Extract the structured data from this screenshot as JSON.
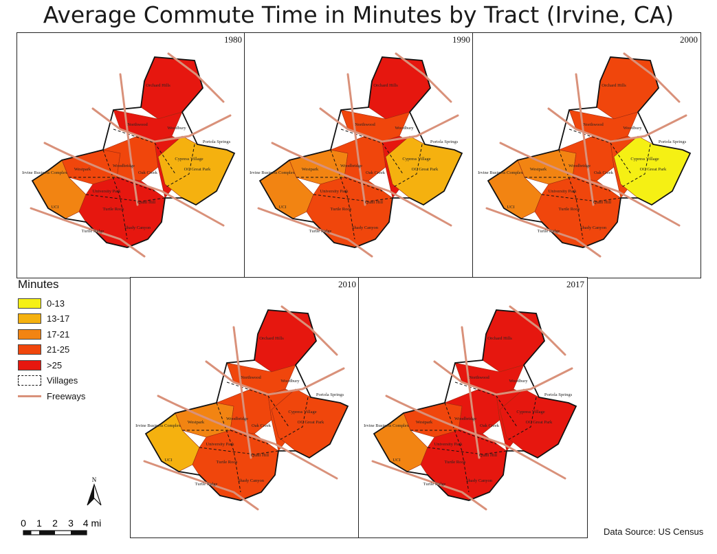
{
  "title": "Average Commute Time in Minutes by Tract (Irvine, CA)",
  "panels": [
    {
      "year": "1980",
      "fills": [
        "#e6170f",
        "#e6170f",
        "#f0460c",
        "#f0460c",
        "#e6170f",
        "#f5b10f",
        "#f28412",
        "#e6170f"
      ]
    },
    {
      "year": "1990",
      "fills": [
        "#e6170f",
        "#f0460c",
        "#f28412",
        "#f0460c",
        "#e6170f",
        "#f5b10f",
        "#f28412",
        "#f0460c"
      ]
    },
    {
      "year": "2000",
      "fills": [
        "#f0460c",
        "#f0460c",
        "#f28412",
        "#f0460c",
        "#f0460c",
        "#f5f014",
        "#f28412",
        "#f0460c"
      ]
    },
    {
      "year": "2010",
      "fills": [
        "#e6170f",
        "#f0460c",
        "#f28412",
        "#f0460c",
        "#f0460c",
        "#f0460c",
        "#f5b10f",
        "#f0460c"
      ]
    },
    {
      "year": "2017",
      "fills": [
        "#e6170f",
        "#e6170f",
        "#f0460c",
        "#e6170f",
        "#e6170f",
        "#e6170f",
        "#f28412",
        "#e6170f"
      ]
    }
  ],
  "place_labels": [
    "Orchard Hills",
    "Northwood",
    "Woodbury",
    "Westpark",
    "Woodbridge",
    "Oak Creek",
    "OC Great Park",
    "University Park",
    "Turtle Rock",
    "Quail Hill",
    "Shady Canyon",
    "Turtle Ridge",
    "Portola Springs",
    "Cypress Village",
    "UCI",
    "Irvine Business Complex"
  ],
  "legend": {
    "title": "Minutes",
    "items": [
      {
        "label": "0-13",
        "color": "#f5f014"
      },
      {
        "label": "13-17",
        "color": "#f5b10f"
      },
      {
        "label": "17-21",
        "color": "#f28412"
      },
      {
        "label": "21-25",
        "color": "#f0460c"
      },
      {
        "label": ">25",
        "color": "#e6170f"
      }
    ],
    "villages_label": "Villages",
    "freeways_label": "Freeways",
    "freeway_color": "#d9917a"
  },
  "north_label": "N",
  "scale": {
    "ticks": [
      "0",
      "1",
      "2",
      "3",
      "4 mi"
    ]
  },
  "source": "Data Source: US Census"
}
